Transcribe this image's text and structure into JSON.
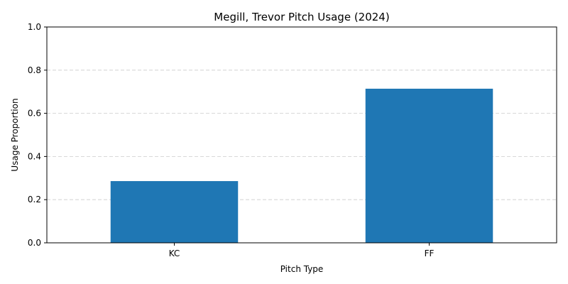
{
  "chart_data": {
    "type": "bar",
    "title": "Megill, Trevor Pitch Usage (2024)",
    "xlabel": "Pitch Type",
    "ylabel": "Usage Proportion",
    "categories": [
      "KC",
      "FF"
    ],
    "values": [
      0.286,
      0.714
    ],
    "ylim": [
      0,
      1.0
    ],
    "yticks": [
      "0.0",
      "0.2",
      "0.4",
      "0.6",
      "0.8",
      "1.0"
    ],
    "grid": "y-dashed",
    "bar_color": "#1f77b4",
    "grid_color": "#cccccc"
  }
}
